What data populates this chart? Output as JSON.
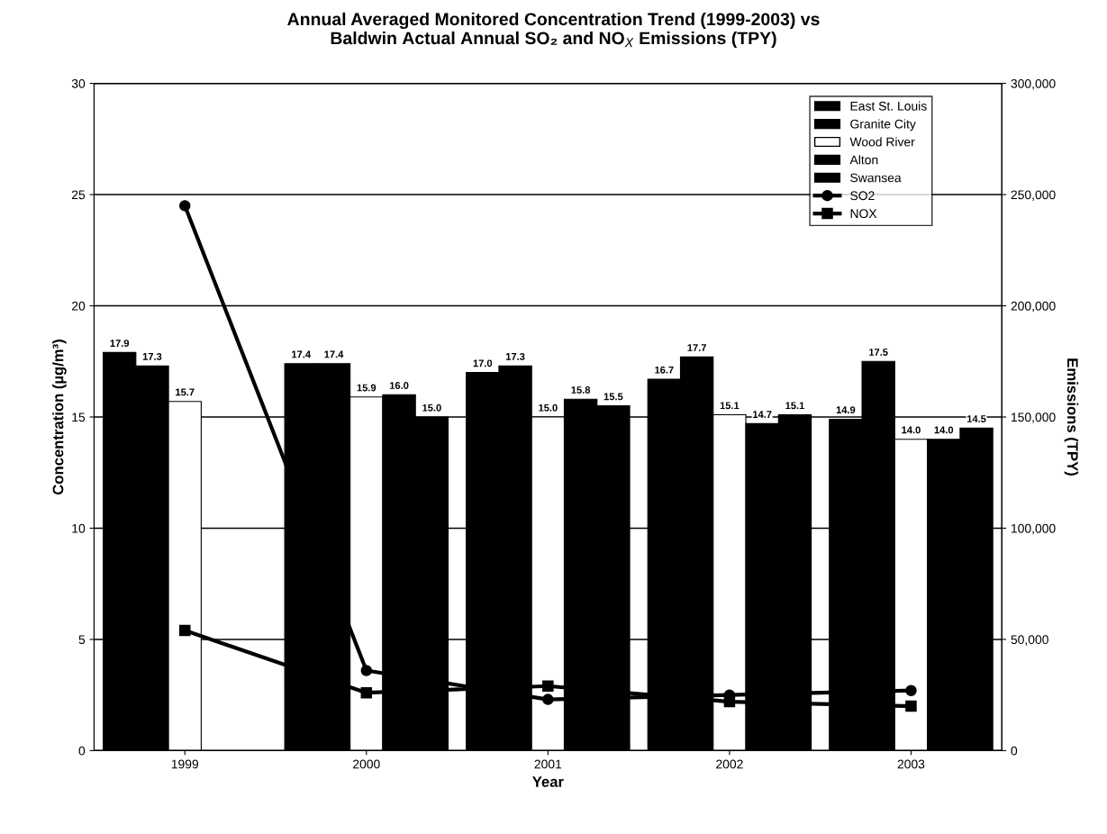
{
  "chart_data": {
    "type": "bar",
    "title": "Annual Averaged Monitored Concentration Trend (1999-2003) vs\nBaldwin Actual Annual SO₂ and NO$_{X}$ Emissions (TPY)",
    "xlabel": "Year",
    "ylabel": "Concentration (µg/m³)",
    "y2label": "Emissions (TPY)",
    "categories": [
      "1999",
      "2000",
      "2001",
      "2002",
      "2003"
    ],
    "series": [
      {
        "name": "East St. Louis",
        "color": "#000000",
        "values": [
          17.9,
          17.4,
          17.0,
          16.7,
          14.9
        ],
        "value_labels": [
          "17.9",
          "17.4",
          "17.0",
          "16.7",
          "14.9"
        ]
      },
      {
        "name": "Granite City",
        "color": "#000000",
        "values": [
          17.3,
          17.4,
          17.3,
          17.7,
          17.5
        ],
        "value_labels": [
          "17.3",
          "17.4",
          "17.3",
          "17.7",
          "17.5"
        ]
      },
      {
        "name": "Wood River",
        "color": "#ffffff",
        "values": [
          15.7,
          15.9,
          15.0,
          15.1,
          14.0
        ],
        "value_labels": [
          "15.7",
          "15.9",
          "15.0",
          "15.1",
          "14.0"
        ]
      },
      {
        "name": "Alton",
        "color": "#000000",
        "values": [
          null,
          16.0,
          15.8,
          14.7,
          14.0
        ],
        "value_labels": [
          null,
          "16.0",
          "15.8",
          "14.7",
          "14.0"
        ]
      },
      {
        "name": "Swansea",
        "color": "#000000",
        "values": [
          null,
          15.0,
          15.5,
          15.1,
          14.5
        ],
        "value_labels": [
          null,
          "15.0",
          "15.5",
          "15.1",
          "14.5"
        ]
      },
      {
        "name": "SO2",
        "type": "line",
        "axis": "y2",
        "marker": "circle",
        "color": "#000000",
        "values": [
          245000,
          36000,
          23000,
          25000,
          27000
        ]
      },
      {
        "name": "NOX",
        "type": "line",
        "axis": "y2",
        "marker": "square",
        "color": "#000000",
        "values": [
          54000,
          26000,
          29000,
          22000,
          20000
        ]
      }
    ],
    "ylim": [
      0,
      30
    ],
    "yticks": [
      0,
      5,
      10,
      15,
      20,
      25,
      30
    ],
    "y2lim": [
      0,
      300000
    ],
    "y2ticks": [
      0,
      {
        "value": 50000,
        "label": "50,000"
      },
      {
        "value": 100000,
        "label": "100,000"
      },
      {
        "value": 150000,
        "label": "150,000"
      },
      {
        "value": 200000,
        "label": "200,000"
      },
      {
        "value": 250000,
        "label": "250,000"
      },
      {
        "value": 300000,
        "label": "300,000"
      }
    ],
    "grid": "y",
    "legend": "top right",
    "line_style": "solid"
  }
}
